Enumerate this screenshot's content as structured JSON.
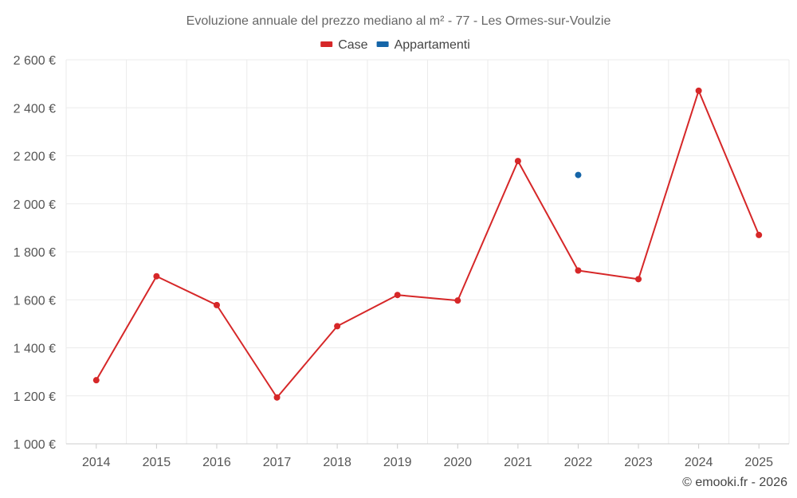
{
  "chart_data": {
    "type": "line",
    "title": "Evoluzione annuale del prezzo mediano al m² - 77 - Les Ormes-sur-Voulzie",
    "categories": [
      "2014",
      "2015",
      "2016",
      "2017",
      "2018",
      "2019",
      "2020",
      "2021",
      "2022",
      "2023",
      "2024",
      "2025"
    ],
    "series": [
      {
        "name": "Case",
        "color": "#d62728",
        "values": [
          1265,
          1698,
          1578,
          1193,
          1490,
          1620,
          1597,
          2178,
          1722,
          1686,
          2471,
          1870
        ]
      },
      {
        "name": "Appartamenti",
        "color": "#1565a8",
        "values": [
          null,
          null,
          null,
          null,
          null,
          null,
          null,
          null,
          2120,
          null,
          null,
          null
        ]
      }
    ],
    "ylim": [
      1000,
      2600
    ],
    "yticks": [
      1000,
      1200,
      1400,
      1600,
      1800,
      2000,
      2200,
      2400,
      2600
    ],
    "ytick_labels": [
      "1 000 €",
      "1 200 €",
      "1 400 €",
      "1 600 €",
      "1 800 €",
      "2 000 €",
      "2 200 €",
      "2 400 €",
      "2 600 €"
    ],
    "legend_position": "top-center",
    "grid": true
  },
  "credit": "© emooki.fr - 2026"
}
